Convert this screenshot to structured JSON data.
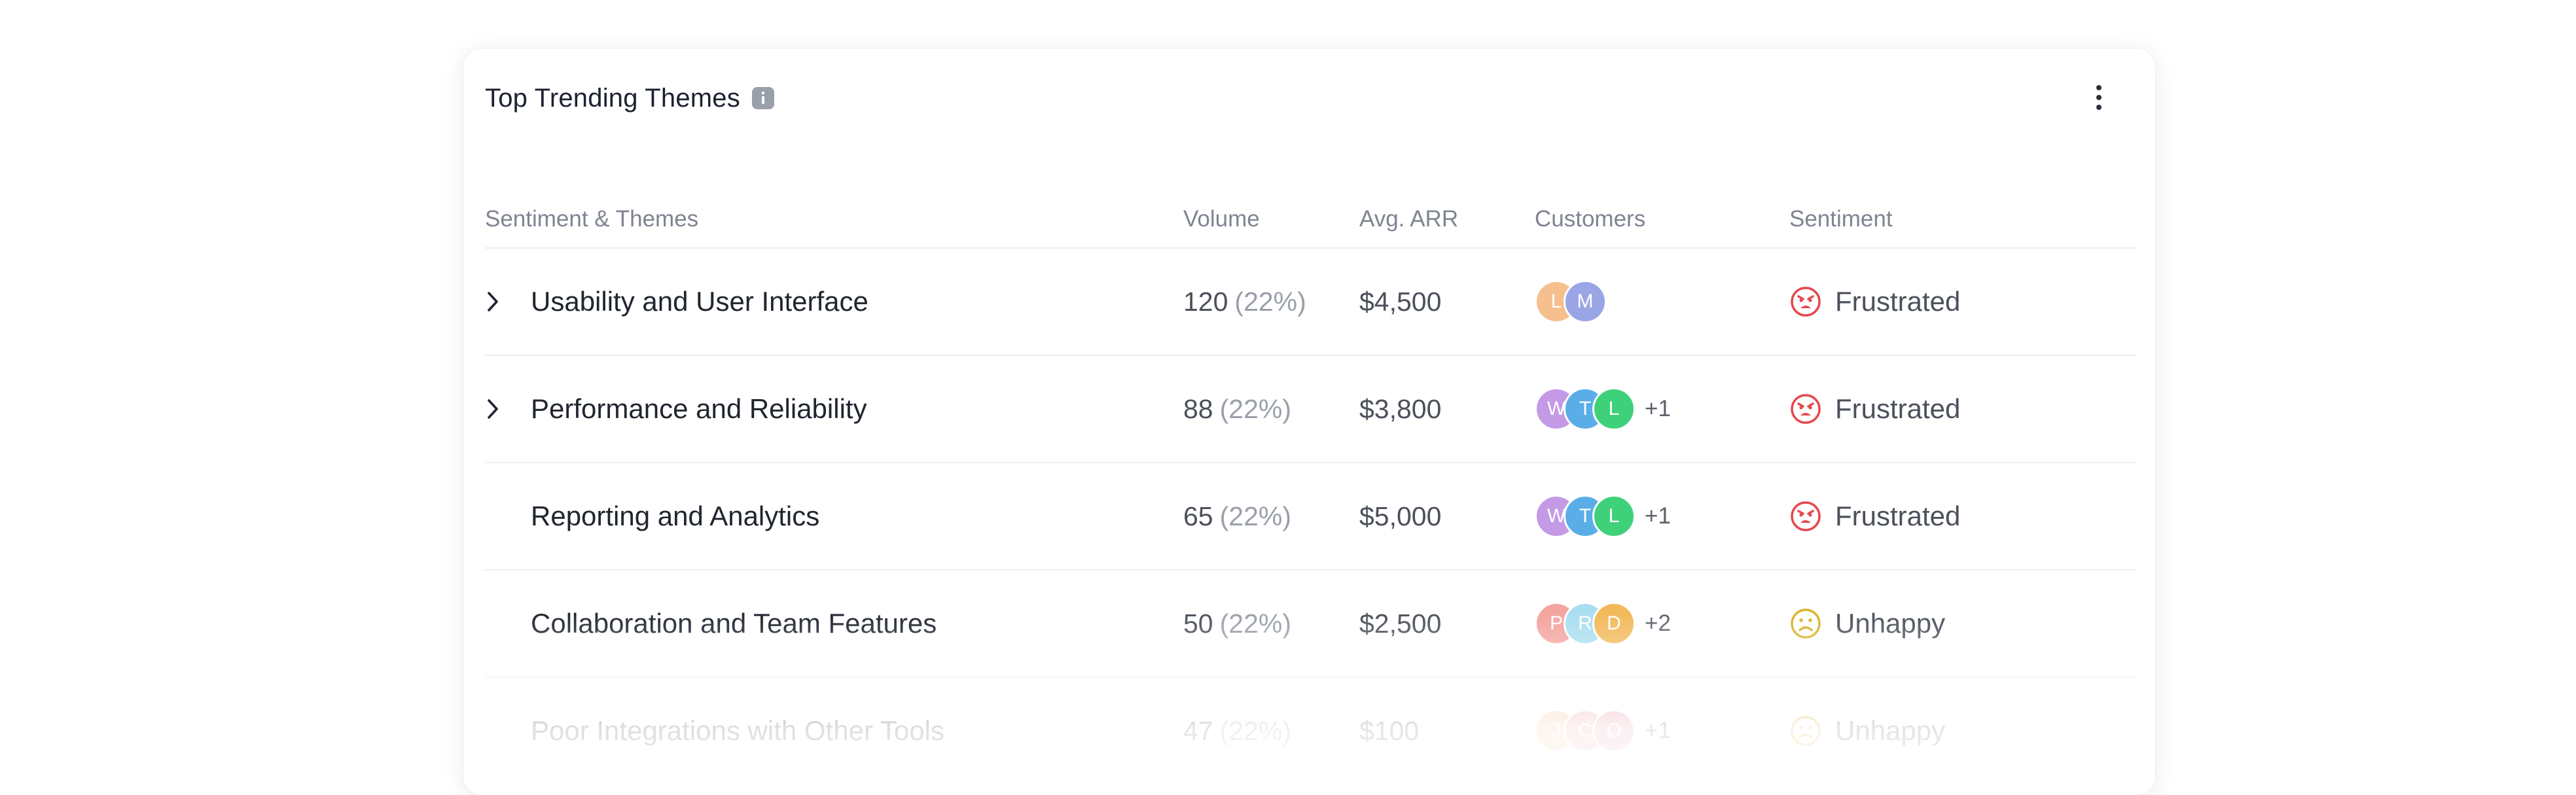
{
  "card": {
    "title": "Top Trending Themes"
  },
  "columns": {
    "theme": "Sentiment & Themes",
    "volume": "Volume",
    "arr": "Avg. ARR",
    "customers": "Customers",
    "sentiment": "Sentiment"
  },
  "rows": [
    {
      "theme": "Usability and User Interface",
      "expandable": true,
      "volume": "120",
      "pct": "(22%)",
      "arr": "$4,500",
      "avatars": [
        {
          "initial": "L",
          "color": "#f5c08e"
        },
        {
          "initial": "M",
          "color": "#9aa5e6"
        }
      ],
      "more": "",
      "sentiment": "Frustrated",
      "sentiment_icon": "frustrated-face-icon",
      "sentiment_color": "#e5484d"
    },
    {
      "theme": "Performance and Reliability",
      "expandable": true,
      "volume": "88",
      "pct": "(22%)",
      "arr": "$3,800",
      "avatars": [
        {
          "initial": "W",
          "color": "#c49ae6"
        },
        {
          "initial": "T",
          "color": "#5aaee8"
        },
        {
          "initial": "L",
          "color": "#3fd17a"
        }
      ],
      "more": "+1",
      "sentiment": "Frustrated",
      "sentiment_icon": "frustrated-face-icon",
      "sentiment_color": "#e5484d"
    },
    {
      "theme": "Reporting and Analytics",
      "expandable": false,
      "volume": "65",
      "pct": "(22%)",
      "arr": "$5,000",
      "avatars": [
        {
          "initial": "W",
          "color": "#c49ae6"
        },
        {
          "initial": "T",
          "color": "#5aaee8"
        },
        {
          "initial": "L",
          "color": "#3fd17a"
        }
      ],
      "more": "+1",
      "sentiment": "Frustrated",
      "sentiment_icon": "frustrated-face-icon",
      "sentiment_color": "#e5484d"
    },
    {
      "theme": "Collaboration and Team Features",
      "expandable": false,
      "volume": "50",
      "pct": "(22%)",
      "arr": "$2,500",
      "avatars": [
        {
          "initial": "P",
          "color": "#f3a49e"
        },
        {
          "initial": "R",
          "color": "#a9def0"
        },
        {
          "initial": "D",
          "color": "#f2b95a"
        }
      ],
      "more": "+2",
      "sentiment": "Unhappy",
      "sentiment_icon": "unhappy-face-icon",
      "sentiment_color": "#d9b52c"
    },
    {
      "theme": "Poor Integrations with Other Tools",
      "expandable": false,
      "volume": "47",
      "pct": "(22%)",
      "arr": "$100",
      "avatars": [
        {
          "initial": "J",
          "color": "#f6c29a"
        },
        {
          "initial": "C",
          "color": "#f0a7a7"
        },
        {
          "initial": "O",
          "color": "#e99aa8"
        }
      ],
      "more": "+1",
      "sentiment": "Unhappy",
      "sentiment_icon": "unhappy-face-icon",
      "sentiment_color": "#d9b52c"
    }
  ]
}
